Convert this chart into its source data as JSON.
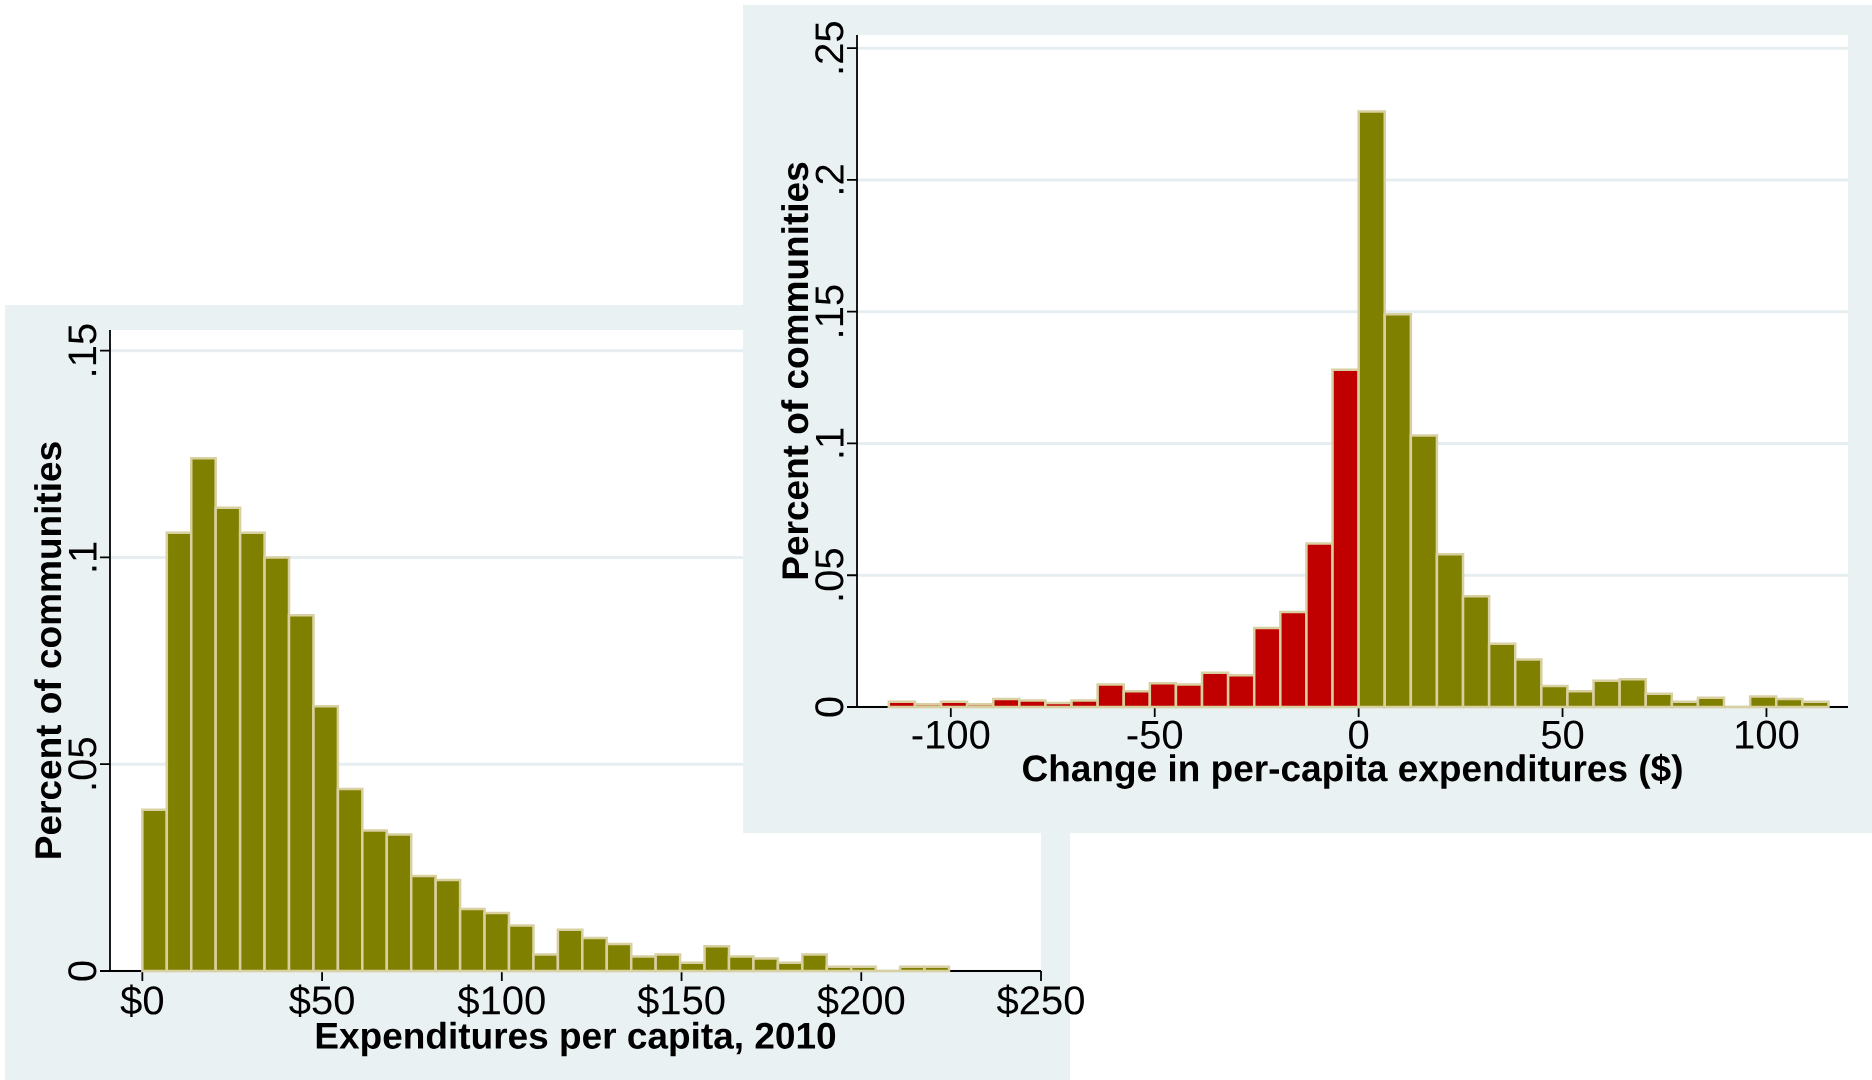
{
  "chart_data": [
    {
      "type": "histogram",
      "xlabel": "Expenditures per capita, 2010",
      "ylabel": "Percent of communities",
      "color": "#808000",
      "bins": [
        0,
        6.8,
        13.6,
        20.4,
        27.2,
        34,
        40.8,
        47.6,
        54.4,
        61.2,
        68,
        74.8,
        81.6,
        88.4,
        95.2,
        102,
        108.8,
        115.6,
        122.4,
        129.2,
        136,
        142.8,
        149.6,
        156.4,
        163.2,
        170,
        176.8,
        183.6,
        190.4,
        197.2,
        204,
        210.8,
        217.6,
        224.4
      ],
      "values": [
        0.039,
        0.106,
        0.124,
        0.112,
        0.106,
        0.1,
        0.086,
        0.064,
        0.044,
        0.034,
        0.033,
        0.023,
        0.022,
        0.015,
        0.014,
        0.011,
        0.004,
        0.01,
        0.008,
        0.0065,
        0.0035,
        0.004,
        0.002,
        0.006,
        0.0035,
        0.003,
        0.002,
        0.004,
        0.001,
        0.001,
        0,
        0.001,
        0.001
      ],
      "xlim": [
        -9,
        250
      ],
      "ylim": [
        0,
        0.155
      ],
      "xticks": [
        {
          "value": 0,
          "label": "$0"
        },
        {
          "value": 50,
          "label": "$50"
        },
        {
          "value": 100,
          "label": "$100"
        },
        {
          "value": 150,
          "label": "$150"
        },
        {
          "value": 200,
          "label": "$200"
        },
        {
          "value": 250,
          "label": "$250"
        }
      ],
      "yticks": [
        0,
        {
          "value": 0.05,
          "label": ".05"
        },
        {
          "value": 0.1,
          "label": ".1"
        },
        {
          "value": 0.15,
          "label": ".15"
        }
      ],
      "grid": "y"
    },
    {
      "type": "histogram",
      "xlabel": "Change in per-capita expenditures ($)",
      "ylabel": "Percent of communities",
      "bins": [
        -115.2,
        -108.8,
        -102.4,
        -96,
        -89.6,
        -83.2,
        -76.8,
        -70.4,
        -64,
        -57.6,
        -51.2,
        -44.8,
        -38.4,
        -32,
        -25.6,
        -19.2,
        -12.8,
        -6.4,
        0,
        6.4,
        12.8,
        19.2,
        25.6,
        32,
        38.4,
        44.8,
        51.2,
        57.6,
        64,
        70.4,
        76.8,
        83.2,
        89.6,
        96,
        102.4,
        108.8,
        115.2
      ],
      "values": [
        0.002,
        0.001,
        0.002,
        0.001,
        0.003,
        0.0025,
        0.0015,
        0.0025,
        0.0085,
        0.006,
        0.009,
        0.0085,
        0.013,
        0.012,
        0.03,
        0.036,
        0.062,
        0.128,
        0.226,
        0.149,
        0.103,
        0.058,
        0.042,
        0.024,
        0.018,
        0.008,
        0.006,
        0.01,
        0.0105,
        0.005,
        0.002,
        0.0035,
        0,
        0.004,
        0.003,
        0.002
      ],
      "colors": [
        "#c00000",
        "#c00000",
        "#c00000",
        "#c00000",
        "#c00000",
        "#c00000",
        "#c00000",
        "#c00000",
        "#c00000",
        "#c00000",
        "#c00000",
        "#c00000",
        "#c00000",
        "#c00000",
        "#c00000",
        "#c00000",
        "#c00000",
        "#c00000",
        "#808000",
        "#808000",
        "#808000",
        "#808000",
        "#808000",
        "#808000",
        "#808000",
        "#808000",
        "#808000",
        "#808000",
        "#808000",
        "#808000",
        "#808000",
        "#808000",
        "#808000",
        "#808000",
        "#808000",
        "#808000"
      ],
      "xlim": [
        -123,
        120
      ],
      "ylim": [
        0,
        0.255
      ],
      "xticks": [
        -100,
        -50,
        0,
        50,
        100
      ],
      "yticks": [
        0,
        {
          "value": 0.05,
          "label": ".05"
        },
        {
          "value": 0.1,
          "label": ".1"
        },
        {
          "value": 0.15,
          "label": ".15"
        },
        {
          "value": 0.2,
          "label": ".2"
        },
        {
          "value": 0.25,
          "label": ".25"
        }
      ],
      "grid": "y"
    }
  ]
}
